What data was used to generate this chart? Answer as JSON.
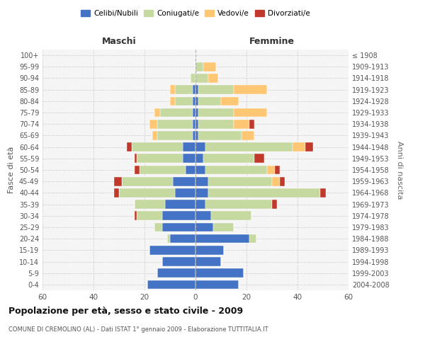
{
  "age_groups": [
    "0-4",
    "5-9",
    "10-14",
    "15-19",
    "20-24",
    "25-29",
    "30-34",
    "35-39",
    "40-44",
    "45-49",
    "50-54",
    "55-59",
    "60-64",
    "65-69",
    "70-74",
    "75-79",
    "80-84",
    "85-89",
    "90-94",
    "95-99",
    "100+"
  ],
  "birth_years": [
    "2004-2008",
    "1999-2003",
    "1994-1998",
    "1989-1993",
    "1984-1988",
    "1979-1983",
    "1974-1978",
    "1969-1973",
    "1964-1968",
    "1959-1963",
    "1954-1958",
    "1949-1953",
    "1944-1948",
    "1939-1943",
    "1934-1938",
    "1929-1933",
    "1924-1928",
    "1919-1923",
    "1914-1918",
    "1909-1913",
    "≤ 1908"
  ],
  "maschi": {
    "celibi": [
      19,
      15,
      13,
      18,
      10,
      13,
      13,
      12,
      8,
      9,
      4,
      5,
      5,
      1,
      1,
      1,
      1,
      1,
      0,
      0,
      0
    ],
    "coniugati": [
      0,
      0,
      0,
      0,
      1,
      3,
      10,
      12,
      22,
      20,
      18,
      18,
      20,
      14,
      14,
      13,
      7,
      7,
      2,
      0,
      0
    ],
    "vedovi": [
      0,
      0,
      0,
      0,
      0,
      0,
      0,
      0,
      0,
      0,
      0,
      0,
      0,
      2,
      3,
      2,
      2,
      2,
      0,
      0,
      0
    ],
    "divorziati": [
      0,
      0,
      0,
      0,
      0,
      0,
      1,
      0,
      2,
      3,
      2,
      1,
      2,
      0,
      0,
      0,
      0,
      0,
      0,
      0,
      0
    ]
  },
  "femmine": {
    "nubili": [
      17,
      19,
      10,
      11,
      21,
      7,
      6,
      4,
      5,
      5,
      4,
      3,
      4,
      1,
      1,
      1,
      1,
      1,
      0,
      0,
      0
    ],
    "coniugate": [
      0,
      0,
      0,
      0,
      3,
      8,
      16,
      26,
      44,
      25,
      24,
      20,
      34,
      17,
      14,
      14,
      9,
      14,
      5,
      3,
      0
    ],
    "vedove": [
      0,
      0,
      0,
      0,
      0,
      0,
      0,
      0,
      0,
      3,
      3,
      0,
      5,
      5,
      6,
      13,
      7,
      13,
      4,
      5,
      0
    ],
    "divorziate": [
      0,
      0,
      0,
      0,
      0,
      0,
      0,
      2,
      2,
      2,
      2,
      4,
      3,
      0,
      2,
      0,
      0,
      0,
      0,
      0,
      0
    ]
  },
  "color_celibi": "#4472c4",
  "color_coniugati": "#c5d9a0",
  "color_vedovi": "#ffc773",
  "color_divorziati": "#c0392b",
  "title": "Popolazione per età, sesso e stato civile - 2009",
  "subtitle": "COMUNE DI CREMOLINO (AL) - Dati ISTAT 1° gennaio 2009 - Elaborazione TUTTITALIA.IT",
  "ylabel_left": "Fasce di età",
  "ylabel_right": "Anni di nascita",
  "xlabel_left": "Maschi",
  "xlabel_right": "Femmine",
  "xlim": 60,
  "bg_color": "#f5f5f5",
  "grid_color": "#cccccc"
}
